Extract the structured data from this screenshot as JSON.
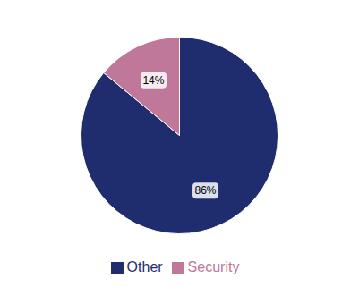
{
  "chart_data": {
    "type": "pie",
    "categories": [
      "Other",
      "Security"
    ],
    "values": [
      86,
      14
    ],
    "value_labels": [
      "86%",
      "14%"
    ],
    "colors": [
      "#1F2D6E",
      "#C0789A"
    ],
    "data_labels": true,
    "legend": "bottom"
  }
}
